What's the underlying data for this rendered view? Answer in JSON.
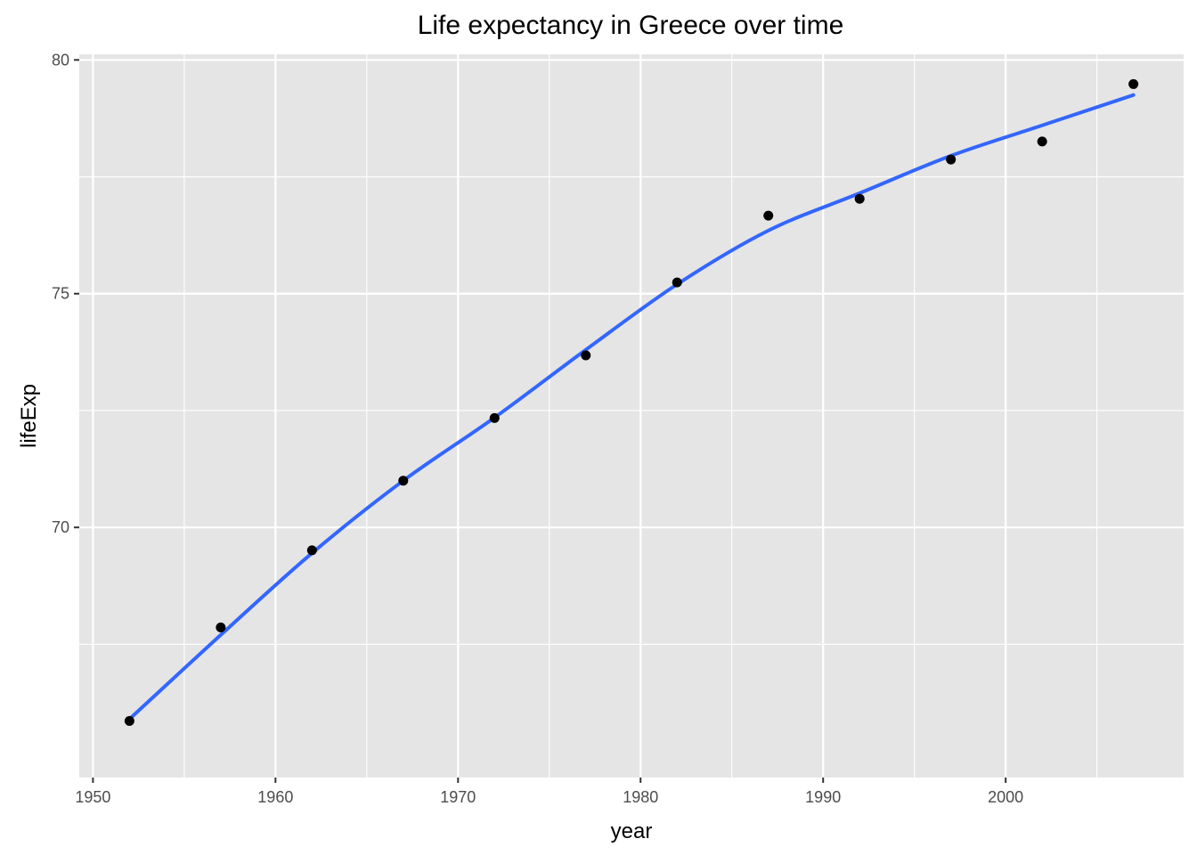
{
  "chart_data": {
    "type": "scatter",
    "title": "Life expectancy in Greece over time",
    "xlabel": "year",
    "ylabel": "lifeExp",
    "xlim": [
      1949.25,
      2009.75
    ],
    "ylim": [
      64.65,
      80.12
    ],
    "x_ticks": [
      1950,
      1960,
      1970,
      1980,
      1990,
      2000
    ],
    "y_ticks": [
      70,
      75,
      80
    ],
    "grid": true,
    "series": [
      {
        "type": "points",
        "x": [
          1952,
          1957,
          1962,
          1967,
          1972,
          1977,
          1982,
          1987,
          1992,
          1997,
          2002,
          2007
        ],
        "y": [
          65.86,
          67.86,
          69.51,
          71.0,
          72.34,
          73.68,
          75.24,
          76.67,
          77.03,
          77.869,
          78.256,
          79.483
        ]
      },
      {
        "type": "smooth",
        "x": [
          1952,
          1957,
          1962,
          1967,
          1972,
          1977,
          1982,
          1987,
          1992,
          1997,
          2002,
          2007
        ],
        "y": [
          65.9,
          67.7,
          69.45,
          71.0,
          72.35,
          73.8,
          75.2,
          76.35,
          77.15,
          77.95,
          78.6,
          79.25
        ]
      }
    ],
    "colors": {
      "panel_background": "#e5e5e5",
      "grid": "#ffffff",
      "points": "#000000",
      "smooth_line": "#3366ff",
      "tick_text": "#4d4d4d"
    }
  }
}
